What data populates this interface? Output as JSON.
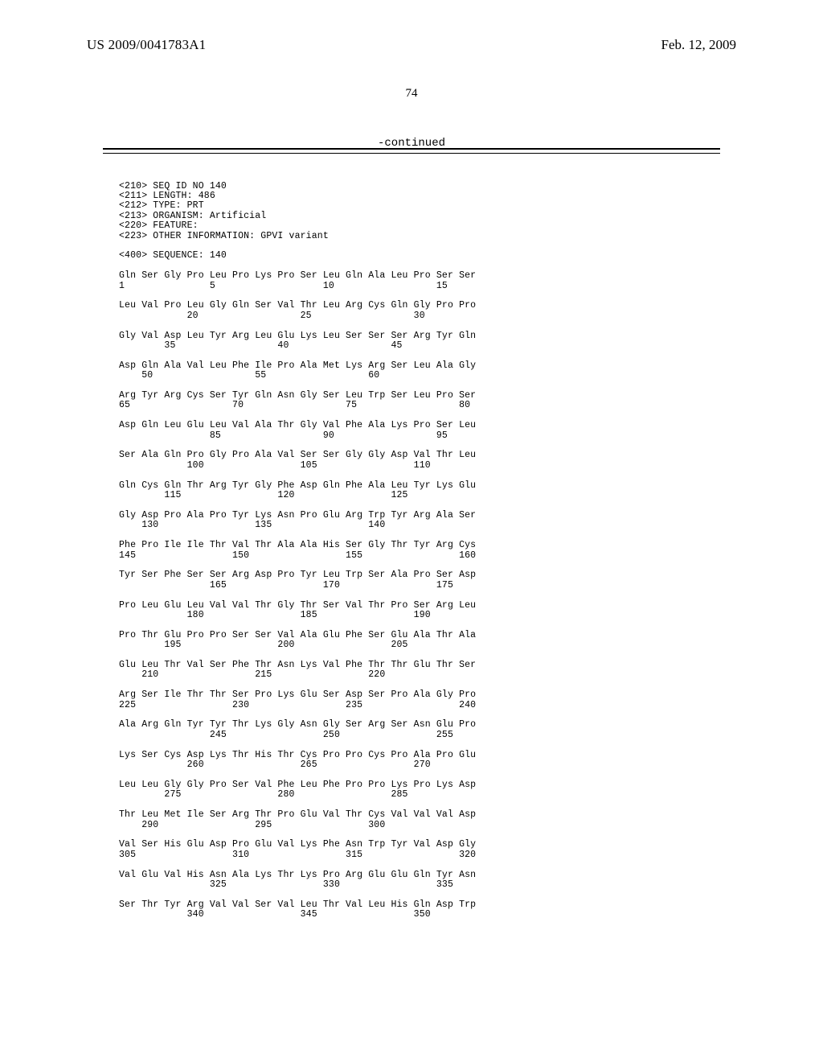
{
  "header": {
    "pub_number": "US 2009/0041783A1",
    "pub_date": "Feb. 12, 2009",
    "page_number": "74",
    "continued": "-continued"
  },
  "sequence_block": "<210> SEQ ID NO 140\n<211> LENGTH: 486\n<212> TYPE: PRT\n<213> ORGANISM: Artificial\n<220> FEATURE:\n<223> OTHER INFORMATION: GPVI variant\n\n<400> SEQUENCE: 140\n\nGln Ser Gly Pro Leu Pro Lys Pro Ser Leu Gln Ala Leu Pro Ser Ser\n1               5                   10                  15\n\nLeu Val Pro Leu Gly Gln Ser Val Thr Leu Arg Cys Gln Gly Pro Pro\n            20                  25                  30\n\nGly Val Asp Leu Tyr Arg Leu Glu Lys Leu Ser Ser Ser Arg Tyr Gln\n        35                  40                  45\n\nAsp Gln Ala Val Leu Phe Ile Pro Ala Met Lys Arg Ser Leu Ala Gly\n    50                  55                  60\n\nArg Tyr Arg Cys Ser Tyr Gln Asn Gly Ser Leu Trp Ser Leu Pro Ser\n65                  70                  75                  80\n\nAsp Gln Leu Glu Leu Val Ala Thr Gly Val Phe Ala Lys Pro Ser Leu\n                85                  90                  95\n\nSer Ala Gln Pro Gly Pro Ala Val Ser Ser Gly Gly Asp Val Thr Leu\n            100                 105                 110\n\nGln Cys Gln Thr Arg Tyr Gly Phe Asp Gln Phe Ala Leu Tyr Lys Glu\n        115                 120                 125\n\nGly Asp Pro Ala Pro Tyr Lys Asn Pro Glu Arg Trp Tyr Arg Ala Ser\n    130                 135                 140\n\nPhe Pro Ile Ile Thr Val Thr Ala Ala His Ser Gly Thr Tyr Arg Cys\n145                 150                 155                 160\n\nTyr Ser Phe Ser Ser Arg Asp Pro Tyr Leu Trp Ser Ala Pro Ser Asp\n                165                 170                 175\n\nPro Leu Glu Leu Val Val Thr Gly Thr Ser Val Thr Pro Ser Arg Leu\n            180                 185                 190\n\nPro Thr Glu Pro Pro Ser Ser Val Ala Glu Phe Ser Glu Ala Thr Ala\n        195                 200                 205\n\nGlu Leu Thr Val Ser Phe Thr Asn Lys Val Phe Thr Thr Glu Thr Ser\n    210                 215                 220\n\nArg Ser Ile Thr Thr Ser Pro Lys Glu Ser Asp Ser Pro Ala Gly Pro\n225                 230                 235                 240\n\nAla Arg Gln Tyr Tyr Thr Lys Gly Asn Gly Ser Arg Ser Asn Glu Pro\n                245                 250                 255\n\nLys Ser Cys Asp Lys Thr His Thr Cys Pro Pro Cys Pro Ala Pro Glu\n            260                 265                 270\n\nLeu Leu Gly Gly Pro Ser Val Phe Leu Phe Pro Pro Lys Pro Lys Asp\n        275                 280                 285\n\nThr Leu Met Ile Ser Arg Thr Pro Glu Val Thr Cys Val Val Val Asp\n    290                 295                 300\n\nVal Ser His Glu Asp Pro Glu Val Lys Phe Asn Trp Tyr Val Asp Gly\n305                 310                 315                 320\n\nVal Glu Val His Asn Ala Lys Thr Lys Pro Arg Glu Glu Gln Tyr Asn\n                325                 330                 335\n\nSer Thr Tyr Arg Val Val Ser Val Leu Thr Val Leu His Gln Asp Trp\n            340                 345                 350"
}
